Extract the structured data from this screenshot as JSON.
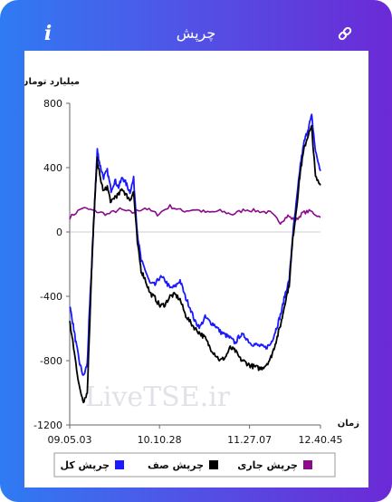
{
  "header": {
    "title": "چرپش",
    "info_label": "i"
  },
  "icons": {
    "info": "info-icon",
    "link": "link-icon"
  },
  "colors": {
    "grad_start": "#2f7bf3",
    "grad_end": "#6b2ad6",
    "total": "#1a1aff",
    "net": "#000000",
    "current": "#8b0a8b"
  },
  "watermark": "LiveTSE.ir",
  "chart_data": {
    "type": "line",
    "ylabel": "میلیارد تومان",
    "xlabel": "زمان",
    "ylim": [
      -1200,
      800
    ],
    "yticks": [
      800,
      400,
      0,
      -400,
      -800,
      -1200
    ],
    "xticks": [
      "09.05.03",
      "10.10.28",
      "11.27.07",
      "12.40.45"
    ],
    "xtick_pos": [
      0.0,
      0.358,
      0.717,
      1.0
    ],
    "legend_position": "bottom",
    "series": [
      {
        "name": "چرپش کل",
        "color": "#1a1aff",
        "x": [
          0.0,
          0.012,
          0.025,
          0.04,
          0.055,
          0.07,
          0.08,
          0.09,
          0.1,
          0.11,
          0.12,
          0.135,
          0.15,
          0.165,
          0.18,
          0.195,
          0.21,
          0.225,
          0.24,
          0.255,
          0.27,
          0.285,
          0.3,
          0.32,
          0.34,
          0.36,
          0.38,
          0.4,
          0.42,
          0.44,
          0.46,
          0.48,
          0.5,
          0.52,
          0.54,
          0.56,
          0.58,
          0.6,
          0.62,
          0.64,
          0.66,
          0.68,
          0.7,
          0.72,
          0.74,
          0.76,
          0.78,
          0.8,
          0.815,
          0.83,
          0.845,
          0.86,
          0.875,
          0.89,
          0.905,
          0.92,
          0.935,
          0.95,
          0.965,
          0.98,
          1.0
        ],
        "values": [
          -460,
          -560,
          -690,
          -820,
          -900,
          -820,
          -450,
          -150,
          200,
          510,
          420,
          340,
          380,
          260,
          320,
          280,
          340,
          300,
          250,
          330,
          -10,
          -180,
          -230,
          -320,
          -330,
          -280,
          -300,
          -350,
          -340,
          -300,
          -400,
          -470,
          -560,
          -590,
          -530,
          -560,
          -580,
          -620,
          -640,
          -660,
          -690,
          -640,
          -650,
          -690,
          -700,
          -710,
          -720,
          -700,
          -640,
          -570,
          -490,
          -380,
          -300,
          -10,
          200,
          420,
          560,
          640,
          720,
          500,
          380
        ]
      },
      {
        "name": "چرپش صف",
        "color": "#000000",
        "x": [
          0.0,
          0.012,
          0.025,
          0.04,
          0.055,
          0.07,
          0.08,
          0.09,
          0.1,
          0.11,
          0.12,
          0.135,
          0.15,
          0.165,
          0.18,
          0.195,
          0.21,
          0.225,
          0.24,
          0.255,
          0.27,
          0.285,
          0.3,
          0.32,
          0.34,
          0.36,
          0.38,
          0.4,
          0.42,
          0.44,
          0.46,
          0.48,
          0.5,
          0.52,
          0.54,
          0.56,
          0.58,
          0.6,
          0.62,
          0.64,
          0.66,
          0.68,
          0.7,
          0.72,
          0.74,
          0.76,
          0.78,
          0.8,
          0.815,
          0.83,
          0.845,
          0.86,
          0.875,
          0.89,
          0.905,
          0.92,
          0.935,
          0.95,
          0.965,
          0.98,
          1.0
        ],
        "values": [
          -560,
          -680,
          -820,
          -980,
          -1050,
          -1000,
          -560,
          -120,
          200,
          450,
          350,
          250,
          280,
          180,
          220,
          230,
          270,
          230,
          200,
          250,
          -70,
          -240,
          -290,
          -380,
          -410,
          -460,
          -450,
          -400,
          -390,
          -420,
          -510,
          -560,
          -600,
          -630,
          -660,
          -720,
          -760,
          -800,
          -780,
          -720,
          -740,
          -790,
          -810,
          -830,
          -840,
          -850,
          -830,
          -790,
          -720,
          -640,
          -550,
          -430,
          -330,
          -40,
          160,
          380,
          520,
          600,
          650,
          340,
          290
        ]
      },
      {
        "name": "چرپش جاری",
        "color": "#8b0a8b",
        "x": [
          0.0,
          0.05,
          0.1,
          0.15,
          0.2,
          0.25,
          0.3,
          0.35,
          0.4,
          0.45,
          0.5,
          0.55,
          0.6,
          0.65,
          0.7,
          0.75,
          0.8,
          0.84,
          0.87,
          0.9,
          0.93,
          0.96,
          1.0
        ],
        "values": [
          90,
          150,
          130,
          110,
          140,
          120,
          150,
          110,
          160,
          130,
          140,
          120,
          130,
          110,
          140,
          130,
          120,
          60,
          100,
          70,
          120,
          130,
          90
        ]
      }
    ]
  }
}
